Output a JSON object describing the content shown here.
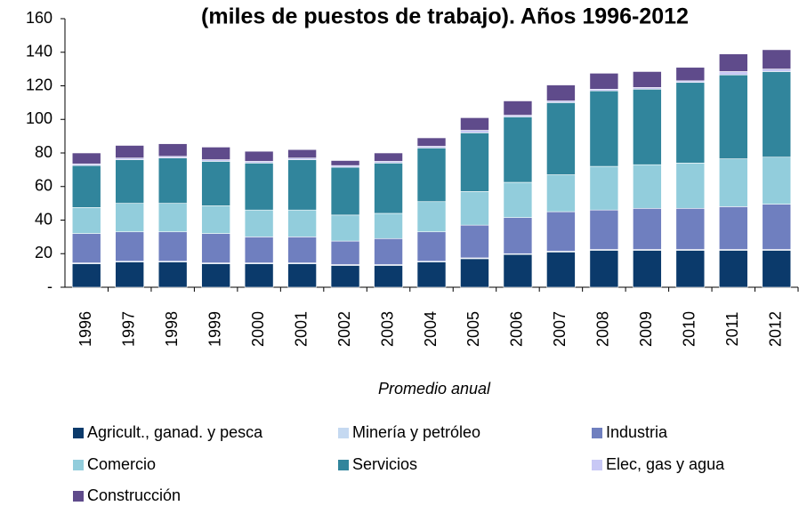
{
  "chart_data": {
    "type": "stacked_bar",
    "title": "(miles de puestos de trabajo). Años 1996-2012",
    "x_label": "Promedio anual",
    "categories": [
      "1996",
      "1997",
      "1998",
      "1999",
      "2000",
      "2001",
      "2002",
      "2003",
      "2004",
      "2005",
      "2006",
      "2007",
      "2008",
      "2009",
      "2010",
      "2011",
      "2012"
    ],
    "series": [
      {
        "name": "Agricult., ganad. y pesca",
        "color": "#0b3a6b",
        "values": [
          14,
          15,
          15,
          14,
          14,
          14,
          13,
          13,
          15,
          17,
          19.5,
          21,
          22,
          22,
          22,
          22,
          22
        ]
      },
      {
        "name": "Minería y petróleo",
        "color": "#c5d9f1",
        "values": [
          0.5,
          0.5,
          0.5,
          0.5,
          0.5,
          0.5,
          0.5,
          0.5,
          0.5,
          0.5,
          0.5,
          0.5,
          0.5,
          0.5,
          0.5,
          0.5,
          0.5
        ]
      },
      {
        "name": "Industria",
        "color": "#6f7fbf",
        "values": [
          17.5,
          17.5,
          17.5,
          17.5,
          15.5,
          15.5,
          14,
          15.5,
          17.5,
          19.5,
          21.5,
          23.5,
          23.5,
          24.5,
          24.5,
          25.5,
          27
        ]
      },
      {
        "name": "Comercio",
        "color": "#92cddc",
        "values": [
          15.5,
          17,
          17,
          16.5,
          16,
          16,
          15.5,
          15,
          18,
          20,
          21,
          22,
          26,
          26,
          27,
          28.5,
          28
        ]
      },
      {
        "name": "Servicios",
        "color": "#31859c",
        "values": [
          25,
          26,
          27,
          26.5,
          28,
          30,
          28.5,
          30,
          32,
          35,
          39,
          43,
          45,
          45,
          48,
          50,
          51
        ]
      },
      {
        "name": "Elec, gas y agua",
        "color": "#c8c8f5",
        "values": [
          1,
          1,
          1,
          1,
          1,
          1,
          1,
          1,
          1,
          1.5,
          1,
          1,
          1,
          1,
          1,
          2,
          1.5
        ]
      },
      {
        "name": "Construcción",
        "color": "#5f4b8b",
        "values": [
          6.5,
          7.5,
          7.5,
          7.5,
          6,
          5,
          3,
          5,
          5,
          7.5,
          8.5,
          9.5,
          9.5,
          9.5,
          8,
          10.5,
          11.5
        ]
      }
    ],
    "ylim": [
      0,
      160
    ],
    "yticks": [
      {
        "value": 0,
        "label": "-"
      },
      20,
      40,
      60,
      80,
      100,
      120,
      140,
      160
    ]
  }
}
